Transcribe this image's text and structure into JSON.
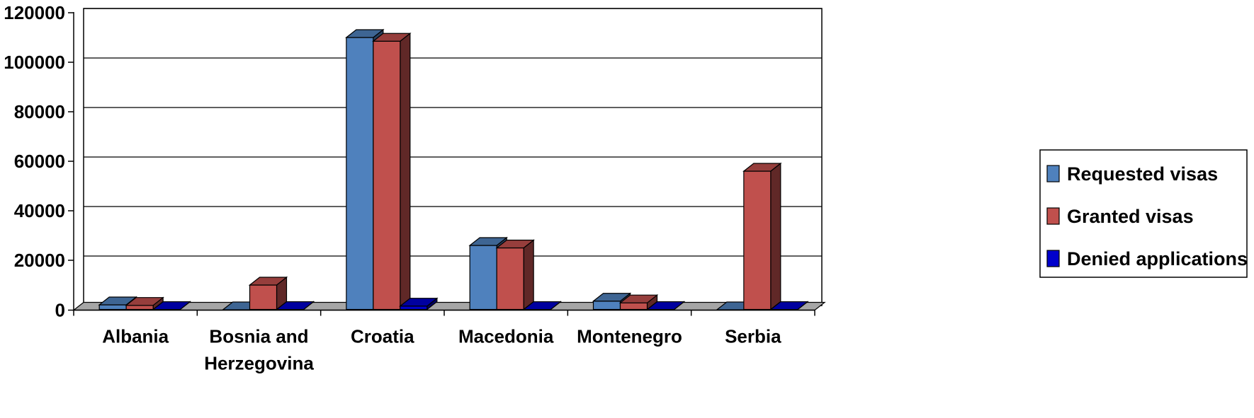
{
  "chart_data": {
    "type": "bar",
    "style": "3d-clustered-column",
    "categories": [
      "Albania",
      "Bosnia and Herzegovina",
      "Croatia",
      "Macedonia",
      "Montenegro",
      "Serbia"
    ],
    "category_lines": [
      [
        "Albania"
      ],
      [
        "Bosnia and",
        "Herzegovina"
      ],
      [
        "Croatia"
      ],
      [
        "Macedonia"
      ],
      [
        "Montenegro"
      ],
      [
        "Serbia"
      ]
    ],
    "series": [
      {
        "name": "Requested visas",
        "color": "#4F81BD",
        "values": [
          2000,
          0,
          110000,
          26000,
          3500,
          0
        ]
      },
      {
        "name": "Granted visas",
        "color": "#C0504D",
        "values": [
          1800,
          10000,
          108500,
          25000,
          2800,
          56000
        ]
      },
      {
        "name": "Denied applications",
        "color": "#0000CC",
        "values": [
          100,
          100,
          1500,
          100,
          100,
          100
        ]
      }
    ],
    "y_ticks": [
      "0",
      "20000",
      "40000",
      "60000",
      "80000",
      "100000",
      "120000"
    ],
    "ylim": [
      0,
      120000
    ],
    "grid": true,
    "legend_position": "right",
    "title": "",
    "xlabel": "",
    "ylabel": ""
  }
}
